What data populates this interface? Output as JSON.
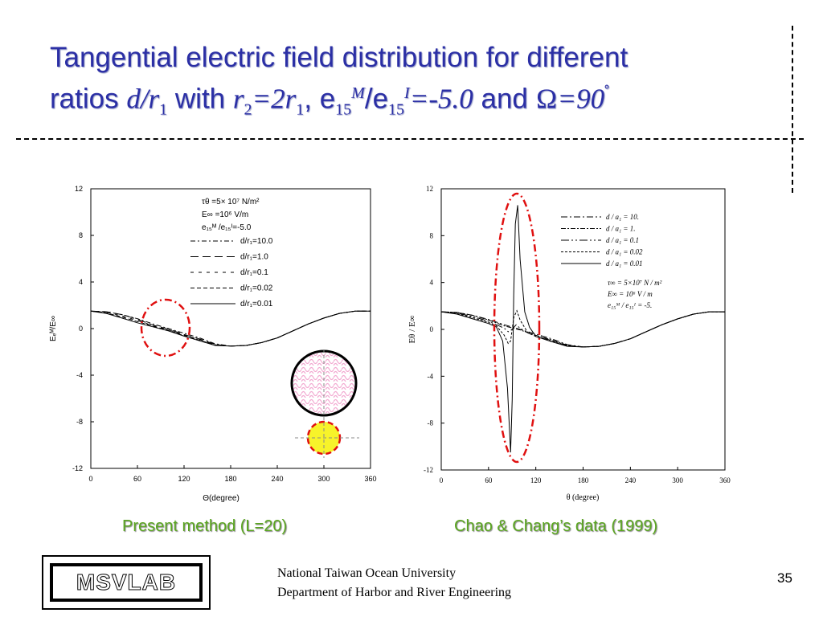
{
  "slide": {
    "title_parts": {
      "line1": "Tangential electric field distribution for different",
      "ratios_text": "ratios ",
      "ratio_var": "d/r",
      "ratio_sub": "1",
      "with_text": " with ",
      "r2_var": "r",
      "r2_sub": "2",
      "eq_2r": "=2r",
      "r1_sub": "1",
      "comma_e": ", e",
      "e15_sub_a": "15",
      "M_sup": "M",
      "slash_e": "/e",
      "e15_sub_b": "15",
      "I_sup": "I",
      "ratio_val": "=-5.0",
      "and_text": " and ",
      "angle_sym": "Ω",
      "angle_val": "=90",
      "deg": "˚"
    },
    "captions": {
      "left": "Present method (L=20)",
      "right": "Chao & Chang’s data (1999)"
    },
    "logo_text": "MSVLAB",
    "footer": {
      "line1": "National Taiwan Ocean University",
      "line2": "Department of Harbor and River Engineering"
    },
    "page_number": "35",
    "colors": {
      "title": "#2b2fa5",
      "caption": "#5aa61f",
      "highlight_ellipse": "#e01010",
      "inclusion_fill": "#f7f32a",
      "matrix_hatch": "#f2a8d0"
    }
  },
  "chart_data": [
    {
      "type": "line",
      "ylabel": "Eₑᴹ/E∞",
      "xlabel": "Θ(degree)",
      "xlim": [
        0,
        360
      ],
      "ylim": [
        -12,
        12
      ],
      "xticks": [
        "0",
        "60",
        "120",
        "180",
        "240",
        "300",
        "360"
      ],
      "yticks": [
        "12",
        "8",
        "4",
        "0",
        "-4",
        "-8",
        "-12"
      ],
      "legend_header": [
        "τθ =5× 10⁷ N/m²",
        "E∞ =10⁶ V/m",
        "e₁₅ᴹ /e₁₅ᴵ=-5.0"
      ],
      "legend_position": "top-right",
      "series": [
        {
          "name": "d/r₁=10.0",
          "x": [
            0,
            20,
            40,
            60,
            80,
            100,
            120,
            140,
            160,
            180,
            200,
            220,
            240,
            260,
            280,
            300,
            320,
            340,
            360
          ],
          "y": [
            1.5,
            1.45,
            1.2,
            0.85,
            0.4,
            0.0,
            -0.4,
            -0.8,
            -1.3,
            -1.5,
            -1.45,
            -1.2,
            -0.8,
            -0.2,
            0.4,
            0.9,
            1.3,
            1.5,
            1.5
          ]
        },
        {
          "name": "d/r₁=1.0",
          "x": [
            0,
            20,
            40,
            60,
            80,
            100,
            120,
            140,
            160,
            180,
            200,
            220,
            240,
            260,
            280,
            300,
            320,
            340,
            360
          ],
          "y": [
            1.5,
            1.45,
            1.2,
            0.8,
            0.3,
            -0.05,
            -0.5,
            -0.9,
            -1.35,
            -1.5,
            -1.45,
            -1.2,
            -0.8,
            -0.2,
            0.4,
            0.9,
            1.3,
            1.5,
            1.5
          ]
        },
        {
          "name": "d/r₁=0.1",
          "x": [
            0,
            20,
            40,
            60,
            80,
            100,
            120,
            140,
            160,
            180,
            200,
            220,
            240,
            260,
            280,
            300,
            320,
            340,
            360
          ],
          "y": [
            1.5,
            1.4,
            1.1,
            0.7,
            0.25,
            -0.1,
            -0.55,
            -0.95,
            -1.4,
            -1.5,
            -1.45,
            -1.2,
            -0.8,
            -0.2,
            0.4,
            0.9,
            1.3,
            1.5,
            1.5
          ]
        },
        {
          "name": "d/r₁=0.02",
          "x": [
            0,
            20,
            40,
            60,
            80,
            100,
            120,
            140,
            160,
            180,
            200,
            220,
            240,
            260,
            280,
            300,
            320,
            340,
            360
          ],
          "y": [
            1.5,
            1.35,
            1.0,
            0.6,
            0.2,
            -0.15,
            -0.6,
            -1.0,
            -1.4,
            -1.5,
            -1.45,
            -1.2,
            -0.8,
            -0.2,
            0.4,
            0.9,
            1.3,
            1.5,
            1.5
          ]
        },
        {
          "name": "d/r₁=0.01",
          "x": [
            0,
            20,
            40,
            60,
            80,
            100,
            120,
            140,
            160,
            180,
            200,
            220,
            240,
            260,
            280,
            300,
            320,
            340,
            360
          ],
          "y": [
            1.5,
            1.3,
            0.9,
            0.5,
            0.15,
            -0.2,
            -0.65,
            -1.05,
            -1.45,
            -1.5,
            -1.45,
            -1.2,
            -0.8,
            -0.2,
            0.4,
            0.9,
            1.3,
            1.5,
            1.5
          ]
        }
      ]
    },
    {
      "type": "line",
      "ylabel": "Eθ / E∞",
      "xlabel": "θ (degree)",
      "xlim": [
        0,
        360
      ],
      "ylim": [
        -12,
        12
      ],
      "xticks": [
        "0",
        "60",
        "120",
        "180",
        "240",
        "300",
        "360"
      ],
      "yticks": [
        "12",
        "8",
        "4",
        "0",
        "-4",
        "-8",
        "-12"
      ],
      "legend_position": "top-right",
      "legend_extra": [
        "τ∞ = 5×10⁷ N / m²",
        "E∞ = 10⁶ V / m",
        "e₁₅ᴹ / e₁₅ᴵ = -5."
      ],
      "series": [
        {
          "name": "d / a₁ = 10.",
          "x": [
            0,
            20,
            40,
            60,
            80,
            100,
            120,
            140,
            160,
            180,
            200,
            220,
            240,
            260,
            280,
            300,
            320,
            340,
            360
          ],
          "y": [
            1.5,
            1.45,
            1.2,
            0.85,
            0.4,
            0.0,
            -0.4,
            -0.8,
            -1.3,
            -1.5,
            -1.45,
            -1.2,
            -0.8,
            -0.2,
            0.4,
            0.9,
            1.3,
            1.5,
            1.5
          ]
        },
        {
          "name": "d / a₁ = 1.",
          "x": [
            0,
            20,
            40,
            60,
            80,
            100,
            120,
            140,
            160,
            180,
            200,
            220,
            240,
            260,
            280,
            300,
            320,
            340,
            360
          ],
          "y": [
            1.5,
            1.45,
            1.2,
            0.8,
            0.3,
            -0.05,
            -0.5,
            -0.9,
            -1.35,
            -1.5,
            -1.45,
            -1.2,
            -0.8,
            -0.2,
            0.4,
            0.9,
            1.3,
            1.5,
            1.5
          ]
        },
        {
          "name": "d / a₁ = 0.1",
          "x": [
            0,
            20,
            40,
            60,
            70,
            80,
            85,
            90,
            95,
            100,
            110,
            120,
            140,
            160,
            180,
            200,
            220,
            240,
            260,
            280,
            300,
            320,
            340,
            360
          ],
          "y": [
            1.5,
            1.4,
            1.1,
            0.7,
            0.4,
            0.1,
            -0.2,
            0.0,
            0.4,
            0.1,
            -0.3,
            -0.55,
            -0.95,
            -1.4,
            -1.5,
            -1.45,
            -1.2,
            -0.8,
            -0.2,
            0.4,
            0.9,
            1.3,
            1.5,
            1.5
          ]
        },
        {
          "name": "d / a₁ = 0.02",
          "x": [
            0,
            20,
            40,
            60,
            70,
            80,
            85,
            88,
            92,
            96,
            100,
            110,
            120,
            140,
            160,
            180,
            200,
            220,
            240,
            260,
            280,
            300,
            320,
            340,
            360
          ],
          "y": [
            1.5,
            1.35,
            1.0,
            0.6,
            0.3,
            -0.5,
            -1.2,
            -1.0,
            1.0,
            1.6,
            0.8,
            -0.3,
            -0.6,
            -1.0,
            -1.4,
            -1.5,
            -1.45,
            -1.2,
            -0.8,
            -0.2,
            0.4,
            0.9,
            1.3,
            1.5,
            1.5
          ]
        },
        {
          "name": "d / a₁ = 0.01",
          "x": [
            0,
            20,
            40,
            60,
            70,
            78,
            84,
            88,
            90,
            92,
            94,
            97,
            100,
            106,
            112,
            120,
            140,
            160,
            180,
            200,
            220,
            240,
            260,
            280,
            300,
            320,
            340,
            360
          ],
          "y": [
            1.5,
            1.3,
            0.9,
            0.5,
            0.2,
            -1.0,
            -5.0,
            -10.5,
            -6.0,
            3.0,
            9.0,
            10.6,
            6.0,
            1.5,
            0.2,
            -0.6,
            -1.05,
            -1.45,
            -1.5,
            -1.45,
            -1.2,
            -0.8,
            -0.2,
            0.4,
            0.9,
            1.3,
            1.5,
            1.5
          ]
        }
      ]
    }
  ]
}
